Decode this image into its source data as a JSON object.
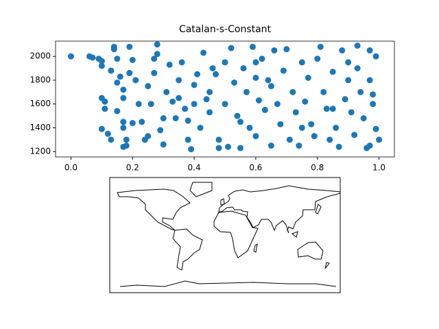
{
  "chart_data": {
    "type": "scatter",
    "title": "Catalan-s-Constant",
    "color": "#1f77b4",
    "x": [
      0.0,
      0.06,
      0.07,
      0.09,
      0.1,
      0.1,
      0.1,
      0.11,
      0.11,
      0.1,
      0.12,
      0.13,
      0.13,
      0.14,
      0.14,
      0.15,
      0.15,
      0.16,
      0.17,
      0.17,
      0.17,
      0.17,
      0.18,
      0.17,
      0.18,
      0.19,
      0.19,
      0.2,
      0.21,
      0.22,
      0.23,
      0.24,
      0.25,
      0.26,
      0.27,
      0.27,
      0.28,
      0.28,
      0.29,
      0.3,
      0.31,
      0.32,
      0.33,
      0.34,
      0.35,
      0.36,
      0.37,
      0.38,
      0.38,
      0.39,
      0.4,
      0.41,
      0.42,
      0.43,
      0.44,
      0.45,
      0.46,
      0.47,
      0.48,
      0.48,
      0.5,
      0.51,
      0.52,
      0.53,
      0.54,
      0.55,
      0.56,
      0.57,
      0.58,
      0.59,
      0.6,
      0.6,
      0.61,
      0.62,
      0.63,
      0.64,
      0.65,
      0.66,
      0.67,
      0.68,
      0.69,
      0.7,
      0.71,
      0.72,
      0.73,
      0.74,
      0.75,
      0.76,
      0.77,
      0.78,
      0.79,
      0.8,
      0.81,
      0.82,
      0.83,
      0.84,
      0.85,
      0.86,
      0.87,
      0.88,
      0.89,
      0.9,
      0.91,
      0.92,
      0.93,
      0.93,
      0.94,
      0.95,
      0.96,
      0.97,
      0.97,
      0.98,
      0.99,
      0.99,
      1.0,
      0.98,
      0.97,
      0.35,
      0.4,
      0.45,
      0.3,
      0.2,
      0.15,
      0.25,
      0.55,
      0.65,
      0.75,
      0.85,
      0.9,
      0.6,
      0.5
    ],
    "y": [
      2000,
      2000,
      1990,
      1980,
      1960,
      1920,
      1650,
      1620,
      1560,
      1390,
      1350,
      1300,
      1880,
      2060,
      2080,
      1980,
      1780,
      1830,
      1720,
      1650,
      1450,
      1400,
      1250,
      1240,
      1300,
      1860,
      2080,
      1970,
      1800,
      1600,
      1450,
      1300,
      1750,
      1600,
      1980,
      1860,
      2100,
      2020,
      1380,
      1260,
      1700,
      1930,
      1620,
      1480,
      1800,
      1950,
      1560,
      1460,
      1300,
      1220,
      1760,
      1850,
      1400,
      2030,
      1640,
      1530,
      1900,
      1850,
      1300,
      1230,
      1600,
      1240,
      2070,
      1780,
      1500,
      1230,
      1900,
      1700,
      1400,
      2080,
      1820,
      1330,
      1630,
      1980,
      1550,
      1800,
      1250,
      2050,
      1600,
      1430,
      1880,
      2060,
      1300,
      1700,
      1530,
      1250,
      1950,
      1620,
      1820,
      1430,
      1330,
      1980,
      2080,
      1700,
      1560,
      1300,
      1870,
      1400,
      1240,
      2050,
      1640,
      1800,
      1530,
      1340,
      2090,
      1900,
      1700,
      1480,
      1230,
      2050,
      1800,
      1600,
      1390,
      2000,
      1300,
      1680,
      1250,
      1650,
      1600,
      1700,
      1480,
      1440,
      1540,
      1330,
      1450,
      1750,
      1400,
      1560,
      1950,
      1950,
      1950
    ],
    "xlim": [
      -0.05,
      1.05
    ],
    "ylim": [
      1155,
      2128
    ],
    "xticks": [
      {
        "value": 0,
        "label": "0.0"
      },
      0.2,
      0.4,
      0.6,
      0.8,
      {
        "value": 1,
        "label": "1.0"
      }
    ],
    "yticks": [
      1200,
      1400,
      1600,
      1800,
      2000
    ]
  }
}
